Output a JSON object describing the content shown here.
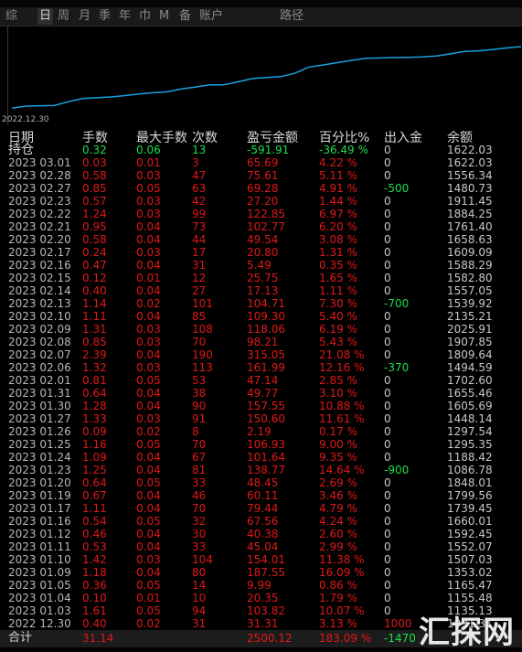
{
  "tabs": [
    "综",
    "日",
    "周",
    "月",
    "季",
    "年",
    "巾",
    "M",
    "备",
    "账户",
    "路径"
  ],
  "active_tab": "日",
  "chart": {
    "x_tick": "2022.12.30",
    "line_color": "#1aa0e0"
  },
  "headers": {
    "date": "日期",
    "lots": "手数",
    "max_lots": "最大手数",
    "count": "次数",
    "pl": "盈亏金额",
    "pct": "百分比%",
    "io": "出入金",
    "balance": "余额"
  },
  "holding": {
    "label": "持仓",
    "lots": "0.32",
    "max": "0.06",
    "count": "13",
    "pl": "-591.91",
    "pct": "-36.49 %",
    "io": "0",
    "balance": "1622.03"
  },
  "rows": [
    {
      "date": "2023 03.01",
      "lots": "0.03",
      "max": "0.01",
      "count": "3",
      "pl": "65.69",
      "pct": "4.22 %",
      "io": "0",
      "balance": "1622.03"
    },
    {
      "date": "2023 02.28",
      "lots": "0.58",
      "max": "0.03",
      "count": "47",
      "pl": "75.61",
      "pct": "5.11 %",
      "io": "0",
      "balance": "1556.34"
    },
    {
      "date": "2023 02.27",
      "lots": "0.85",
      "max": "0.05",
      "count": "63",
      "pl": "69.28",
      "pct": "4.91 %",
      "io": "-500",
      "balance": "1480.73"
    },
    {
      "date": "2023 02.23",
      "lots": "0.57",
      "max": "0.03",
      "count": "42",
      "pl": "27.20",
      "pct": "1.44 %",
      "io": "0",
      "balance": "1911.45"
    },
    {
      "date": "2023 02.22",
      "lots": "1.24",
      "max": "0.03",
      "count": "99",
      "pl": "122.85",
      "pct": "6.97 %",
      "io": "0",
      "balance": "1884.25"
    },
    {
      "date": "2023 02.21",
      "lots": "0.95",
      "max": "0.04",
      "count": "73",
      "pl": "102.77",
      "pct": "6.20 %",
      "io": "0",
      "balance": "1761.40"
    },
    {
      "date": "2023 02.20",
      "lots": "0.58",
      "max": "0.04",
      "count": "44",
      "pl": "49.54",
      "pct": "3.08 %",
      "io": "0",
      "balance": "1658.63"
    },
    {
      "date": "2023 02.17",
      "lots": "0.24",
      "max": "0.03",
      "count": "17",
      "pl": "20.80",
      "pct": "1.31 %",
      "io": "0",
      "balance": "1609.09"
    },
    {
      "date": "2023 02.16",
      "lots": "0.47",
      "max": "0.04",
      "count": "31",
      "pl": "5.49",
      "pct": "0.35 %",
      "io": "0",
      "balance": "1588.29"
    },
    {
      "date": "2023 02.15",
      "lots": "0.12",
      "max": "0.01",
      "count": "12",
      "pl": "25.75",
      "pct": "1.65 %",
      "io": "0",
      "balance": "1582.80"
    },
    {
      "date": "2023 02.14",
      "lots": "0.40",
      "max": "0.04",
      "count": "27",
      "pl": "17.13",
      "pct": "1.11 %",
      "io": "0",
      "balance": "1557.05"
    },
    {
      "date": "2023 02.13",
      "lots": "1.14",
      "max": "0.02",
      "count": "101",
      "pl": "104.71",
      "pct": "7.30 %",
      "io": "-700",
      "balance": "1539.92"
    },
    {
      "date": "2023 02.10",
      "lots": "1.11",
      "max": "0.04",
      "count": "85",
      "pl": "109.30",
      "pct": "5.40 %",
      "io": "0",
      "balance": "2135.21"
    },
    {
      "date": "2023 02.09",
      "lots": "1.31",
      "max": "0.03",
      "count": "108",
      "pl": "118.06",
      "pct": "6.19 %",
      "io": "0",
      "balance": "2025.91"
    },
    {
      "date": "2023 02.08",
      "lots": "0.85",
      "max": "0.03",
      "count": "70",
      "pl": "98.21",
      "pct": "5.43 %",
      "io": "0",
      "balance": "1907.85"
    },
    {
      "date": "2023 02.07",
      "lots": "2.39",
      "max": "0.04",
      "count": "190",
      "pl": "315.05",
      "pct": "21.08 %",
      "io": "0",
      "balance": "1809.64"
    },
    {
      "date": "2023 02.06",
      "lots": "1.32",
      "max": "0.03",
      "count": "113",
      "pl": "161.99",
      "pct": "12.16 %",
      "io": "-370",
      "balance": "1494.59"
    },
    {
      "date": "2023 02.01",
      "lots": "0.81",
      "max": "0.05",
      "count": "53",
      "pl": "47.14",
      "pct": "2.85 %",
      "io": "0",
      "balance": "1702.60"
    },
    {
      "date": "2023 01.31",
      "lots": "0.64",
      "max": "0.04",
      "count": "38",
      "pl": "49.77",
      "pct": "3.10 %",
      "io": "0",
      "balance": "1655.46"
    },
    {
      "date": "2023 01.30",
      "lots": "1.28",
      "max": "0.04",
      "count": "90",
      "pl": "157.55",
      "pct": "10.88 %",
      "io": "0",
      "balance": "1605.69"
    },
    {
      "date": "2023 01.27",
      "lots": "1.33",
      "max": "0.03",
      "count": "91",
      "pl": "150.60",
      "pct": "11.61 %",
      "io": "0",
      "balance": "1448.14"
    },
    {
      "date": "2023 01.26",
      "lots": "0.09",
      "max": "0.02",
      "count": "8",
      "pl": "2.19",
      "pct": "0.17 %",
      "io": "0",
      "balance": "1297.54"
    },
    {
      "date": "2023 01.25",
      "lots": "1.16",
      "max": "0.05",
      "count": "70",
      "pl": "106.93",
      "pct": "9.00 %",
      "io": "0",
      "balance": "1295.35"
    },
    {
      "date": "2023 01.24",
      "lots": "1.09",
      "max": "0.04",
      "count": "67",
      "pl": "101.64",
      "pct": "9.35 %",
      "io": "0",
      "balance": "1188.42"
    },
    {
      "date": "2023 01.23",
      "lots": "1.25",
      "max": "0.04",
      "count": "81",
      "pl": "138.77",
      "pct": "14.64 %",
      "io": "-900",
      "balance": "1086.78"
    },
    {
      "date": "2023 01.20",
      "lots": "0.64",
      "max": "0.05",
      "count": "33",
      "pl": "48.45",
      "pct": "2.69 %",
      "io": "0",
      "balance": "1848.01"
    },
    {
      "date": "2023 01.19",
      "lots": "0.67",
      "max": "0.04",
      "count": "46",
      "pl": "60.11",
      "pct": "3.46 %",
      "io": "0",
      "balance": "1799.56"
    },
    {
      "date": "2023 01.17",
      "lots": "1.11",
      "max": "0.04",
      "count": "70",
      "pl": "79.44",
      "pct": "4.79 %",
      "io": "0",
      "balance": "1739.45"
    },
    {
      "date": "2023 01.16",
      "lots": "0.54",
      "max": "0.05",
      "count": "32",
      "pl": "67.56",
      "pct": "4.24 %",
      "io": "0",
      "balance": "1660.01"
    },
    {
      "date": "2023 01.12",
      "lots": "0.46",
      "max": "0.04",
      "count": "30",
      "pl": "40.38",
      "pct": "2.60 %",
      "io": "0",
      "balance": "1592.45"
    },
    {
      "date": "2023 01.11",
      "lots": "0.53",
      "max": "0.04",
      "count": "33",
      "pl": "45.04",
      "pct": "2.99 %",
      "io": "0",
      "balance": "1552.07"
    },
    {
      "date": "2023 01.10",
      "lots": "1.42",
      "max": "0.03",
      "count": "104",
      "pl": "154.01",
      "pct": "11.38 %",
      "io": "0",
      "balance": "1507.03"
    },
    {
      "date": "2023 01.09",
      "lots": "1.18",
      "max": "0.04",
      "count": "80",
      "pl": "187.55",
      "pct": "16.09 %",
      "io": "0",
      "balance": "1353.02"
    },
    {
      "date": "2023 01.05",
      "lots": "0.36",
      "max": "0.05",
      "count": "14",
      "pl": "9.99",
      "pct": "0.86 %",
      "io": "0",
      "balance": "1165.47"
    },
    {
      "date": "2023 01.04",
      "lots": "0.10",
      "max": "0.01",
      "count": "10",
      "pl": "20.35",
      "pct": "1.79 %",
      "io": "0",
      "balance": "1155.48"
    },
    {
      "date": "2023 01.03",
      "lots": "1.61",
      "max": "0.05",
      "count": "94",
      "pl": "103.82",
      "pct": "10.07 %",
      "io": "0",
      "balance": "1135.13"
    },
    {
      "date": "2022 12.30",
      "lots": "0.40",
      "max": "0.02",
      "count": "31",
      "pl": "31.31",
      "pct": "3.13 %",
      "io": "1000",
      "balance": "1031.31"
    }
  ],
  "total": {
    "label": "合计",
    "lots": "31.14",
    "pl": "2500.12",
    "pct": "183.09 %",
    "io": "-1470"
  },
  "watermark": "汇探网",
  "colors": {
    "red": "#e01818",
    "green": "#19e04a",
    "line": "#1aa0e0"
  }
}
